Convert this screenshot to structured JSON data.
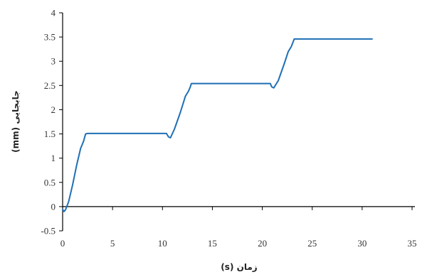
{
  "chart_data": {
    "type": "line",
    "title": "",
    "xlabel": "زمان (s)",
    "ylabel": "جابجایی (mm)",
    "xlim": [
      0,
      35
    ],
    "ylim": [
      -0.5,
      4
    ],
    "x_ticks": [
      0,
      5,
      10,
      15,
      20,
      25,
      30,
      35
    ],
    "y_ticks": [
      -0.5,
      0,
      0.5,
      1,
      1.5,
      2,
      2.5,
      3,
      3.5,
      4
    ],
    "x_tick_labels": [
      "0",
      "5",
      "10",
      "15",
      "20",
      "25",
      "30",
      "35"
    ],
    "y_tick_labels": [
      "-0.5",
      "0",
      "0.5",
      "1",
      "1.5",
      "2",
      "2.5",
      "3",
      "3.5",
      "4"
    ],
    "grid": false,
    "legend": "none",
    "series": [
      {
        "color": "#1f6fb5",
        "x": [
          0,
          0.15,
          0.3,
          0.6,
          1.0,
          1.4,
          1.8,
          2.1,
          2.3,
          2.5,
          3.5,
          6,
          8,
          10,
          10.4,
          10.6,
          10.8,
          11.2,
          11.8,
          12.3,
          12.6,
          12.75,
          12.9,
          14,
          17,
          20,
          20.8,
          20.95,
          21.15,
          21.6,
          22.2,
          22.6,
          22.9,
          23.05,
          23.2,
          25,
          28,
          31
        ],
        "y": [
          -0.06,
          -0.1,
          -0.06,
          0.1,
          0.45,
          0.85,
          1.2,
          1.35,
          1.5,
          1.51,
          1.51,
          1.51,
          1.51,
          1.51,
          1.51,
          1.44,
          1.42,
          1.6,
          1.95,
          2.28,
          2.38,
          2.45,
          2.54,
          2.54,
          2.54,
          2.54,
          2.54,
          2.47,
          2.45,
          2.6,
          2.95,
          3.2,
          3.3,
          3.38,
          3.46,
          3.46,
          3.46,
          3.46
        ]
      }
    ]
  }
}
